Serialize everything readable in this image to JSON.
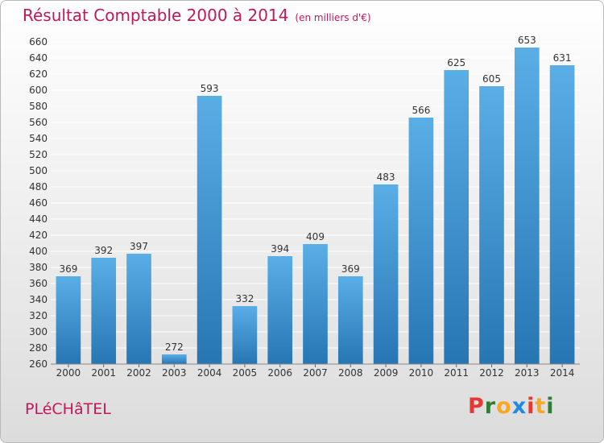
{
  "header": {
    "title": "Résultat Comptable 2000 à 2014",
    "unit_note": "(en milliers d'€)"
  },
  "footer": {
    "place_name": "PLéCHâTEL",
    "brand": "Proxiti",
    "brand_colors": [
      "#e53935",
      "#2e7d32",
      "#f9a825",
      "#1e88e5",
      "#e53935",
      "#f9a825",
      "#2e7d32"
    ]
  },
  "colors": {
    "bar_light": "#5aaee6",
    "bar_dark": "#2776b4",
    "title": "#c2185b",
    "grid": "#ffffff"
  },
  "chart_data": {
    "type": "bar",
    "categories": [
      "2000",
      "2001",
      "2002",
      "2003",
      "2004",
      "2005",
      "2006",
      "2007",
      "2008",
      "2009",
      "2010",
      "2011",
      "2012",
      "2013",
      "2014"
    ],
    "values": [
      369,
      392,
      397,
      272,
      593,
      332,
      394,
      409,
      369,
      483,
      566,
      625,
      605,
      653,
      631
    ],
    "ylim": [
      260,
      660
    ],
    "ytick_step": 20,
    "grid": true,
    "data_labels": true
  }
}
